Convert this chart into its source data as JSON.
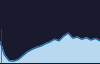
{
  "x": [
    0,
    1,
    2,
    3,
    4,
    5,
    6,
    7,
    8,
    9,
    10,
    11,
    12,
    13,
    14,
    15,
    16,
    17,
    18,
    19,
    20,
    21,
    22
  ],
  "y": [
    55,
    20,
    5,
    4,
    8,
    18,
    28,
    35,
    40,
    44,
    50,
    55,
    62,
    58,
    70,
    78,
    65,
    68,
    62,
    66,
    60,
    64,
    58
  ],
  "line_color": "#1464a0",
  "fill_color": "#b8d8f0",
  "background_color": "#1a1a2e",
  "plot_bg_color": "#cce4f5",
  "ylim": [
    0,
    90
  ],
  "vline_x": 0.3,
  "vline_color": "#444466",
  "line_width": 0.9
}
